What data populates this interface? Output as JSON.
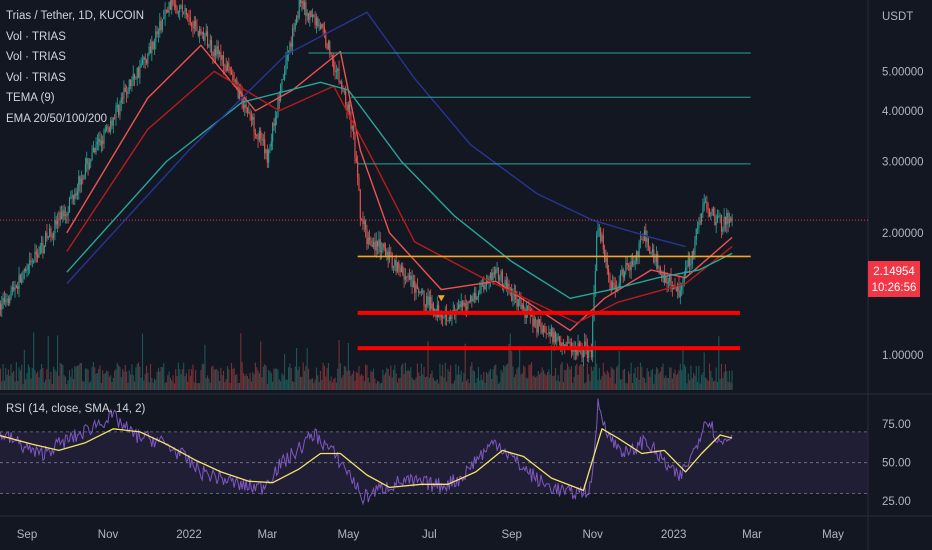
{
  "chart_data": {
    "type": "candlestick",
    "symbol_title": "Trias / Tether, 1D, KUCOIN",
    "indicators": [
      "Vol · TRIAS",
      "Vol · TRIAS",
      "Vol · TRIAS",
      "TEMA (9)",
      "EMA 20/50/100/200"
    ],
    "currency": "USDT",
    "y_scale": "log",
    "y_ticks": [
      "5.00000",
      "4.00000",
      "3.00000",
      "2.00000",
      "1.00000"
    ],
    "y_tick_values": [
      5,
      4,
      3,
      2,
      1
    ],
    "price_ylim": [
      0.82,
      7.5
    ],
    "last_price": "2.14954",
    "last_price_value": 2.15,
    "countdown": "10:26:56",
    "x_ticks": [
      "Sep",
      "Nov",
      "2022",
      "Mar",
      "May",
      "Jul",
      "Sep",
      "Nov",
      "2023",
      "Mar",
      "May"
    ],
    "x_tick_dates": [
      "2021-09-01",
      "2021-11-01",
      "2022-01-01",
      "2022-03-01",
      "2022-05-01",
      "2022-07-01",
      "2022-09-01",
      "2022-11-01",
      "2023-01-01",
      "2023-03-01",
      "2023-05-01"
    ],
    "price_path": [
      [
        "2021-08-10",
        1.3
      ],
      [
        "2021-09-01",
        1.6
      ],
      [
        "2021-10-01",
        2.3
      ],
      [
        "2021-11-01",
        3.6
      ],
      [
        "2021-12-01",
        5.5
      ],
      [
        "2021-12-20",
        7.5
      ],
      [
        "2022-01-05",
        6.5
      ],
      [
        "2022-01-25",
        5.4
      ],
      [
        "2022-02-08",
        4.4
      ],
      [
        "2022-02-22",
        3.5
      ],
      [
        "2022-03-01",
        3.05
      ],
      [
        "2022-03-12",
        4.6
      ],
      [
        "2022-03-25",
        7.3
      ],
      [
        "2022-04-10",
        6.5
      ],
      [
        "2022-04-22",
        5.0
      ],
      [
        "2022-05-01",
        4.0
      ],
      [
        "2022-05-05",
        3.4
      ],
      [
        "2022-05-10",
        2.2
      ],
      [
        "2022-05-15",
        1.95
      ],
      [
        "2022-06-01",
        1.75
      ],
      [
        "2022-06-20",
        1.45
      ],
      [
        "2022-07-05",
        1.3
      ],
      [
        "2022-07-20",
        1.25
      ],
      [
        "2022-08-05",
        1.42
      ],
      [
        "2022-08-20",
        1.62
      ],
      [
        "2022-09-05",
        1.35
      ],
      [
        "2022-09-25",
        1.15
      ],
      [
        "2022-10-15",
        1.05
      ],
      [
        "2022-10-31",
        1.02
      ],
      [
        "2022-11-05",
        2.1
      ],
      [
        "2022-11-15",
        1.45
      ],
      [
        "2022-12-01",
        1.7
      ],
      [
        "2022-12-10",
        1.95
      ],
      [
        "2022-12-25",
        1.55
      ],
      [
        "2023-01-05",
        1.45
      ],
      [
        "2023-01-15",
        1.8
      ],
      [
        "2023-01-24",
        2.35
      ],
      [
        "2023-02-05",
        2.12
      ],
      [
        "2023-02-14",
        2.15
      ]
    ],
    "emas": [
      {
        "color": "#ef5350",
        "points": [
          [
            "2021-10-01",
            2.0
          ],
          [
            "2021-12-01",
            4.3
          ],
          [
            "2022-01-10",
            5.8
          ],
          [
            "2022-02-20",
            4.0
          ],
          [
            "2022-03-20",
            4.5
          ],
          [
            "2022-04-25",
            5.6
          ],
          [
            "2022-05-10",
            3.2
          ],
          [
            "2022-06-01",
            2.0
          ],
          [
            "2022-07-10",
            1.45
          ],
          [
            "2022-08-20",
            1.52
          ],
          [
            "2022-10-15",
            1.15
          ],
          [
            "2022-11-10",
            1.38
          ],
          [
            "2022-12-15",
            1.62
          ],
          [
            "2023-01-10",
            1.55
          ],
          [
            "2023-02-14",
            1.95
          ]
        ]
      },
      {
        "color": "#b71c1c",
        "points": [
          [
            "2021-10-01",
            1.8
          ],
          [
            "2021-12-01",
            3.6
          ],
          [
            "2022-01-20",
            5.0
          ],
          [
            "2022-03-10",
            4.0
          ],
          [
            "2022-04-20",
            4.6
          ],
          [
            "2022-05-20",
            3.0
          ],
          [
            "2022-06-20",
            1.9
          ],
          [
            "2022-08-10",
            1.55
          ],
          [
            "2022-10-20",
            1.2
          ],
          [
            "2022-11-20",
            1.35
          ],
          [
            "2023-01-10",
            1.5
          ],
          [
            "2023-02-14",
            1.85
          ]
        ]
      },
      {
        "color": "#26a69a",
        "points": [
          [
            "2021-10-01",
            1.6
          ],
          [
            "2021-12-15",
            3.0
          ],
          [
            "2022-02-10",
            4.2
          ],
          [
            "2022-04-10",
            4.7
          ],
          [
            "2022-05-01",
            4.5
          ],
          [
            "2022-06-10",
            3.0
          ],
          [
            "2022-07-20",
            2.2
          ],
          [
            "2022-09-01",
            1.7
          ],
          [
            "2022-10-15",
            1.38
          ],
          [
            "2022-11-15",
            1.45
          ],
          [
            "2022-12-20",
            1.55
          ],
          [
            "2023-01-20",
            1.62
          ],
          [
            "2023-02-14",
            1.78
          ]
        ]
      },
      {
        "color": "#283593",
        "points": [
          [
            "2021-10-01",
            1.5
          ],
          [
            "2022-01-01",
            3.2
          ],
          [
            "2022-03-15",
            5.5
          ],
          [
            "2022-05-15",
            7.0
          ],
          [
            "2022-06-20",
            4.8
          ],
          [
            "2022-08-01",
            3.3
          ],
          [
            "2022-09-20",
            2.5
          ],
          [
            "2022-11-01",
            2.15
          ],
          [
            "2022-12-15",
            1.95
          ],
          [
            "2023-01-10",
            1.85
          ]
        ]
      }
    ],
    "resistance_lines": [
      {
        "price": 5.55,
        "start": "2022-04-01",
        "end": "2023-02-28",
        "color": "#26a69a"
      },
      {
        "price": 4.32,
        "start": "2022-05-03",
        "end": "2023-02-28",
        "color": "#26a69a"
      },
      {
        "price": 2.96,
        "start": "2022-05-08",
        "end": "2023-02-28",
        "color": "#26a69a"
      }
    ],
    "support_lines": [
      {
        "price": 1.75,
        "start": "2022-05-08",
        "end": "2023-02-28",
        "color": "#f5a623",
        "width": "thin"
      },
      {
        "price": 1.27,
        "start": "2022-05-08",
        "end": "2023-02-20",
        "color": "#ff0000",
        "width": "thick"
      },
      {
        "price": 1.04,
        "start": "2022-05-08",
        "end": "2023-02-20",
        "color": "#ff0000",
        "width": "thick"
      }
    ],
    "marker": {
      "date": "2022-07-10",
      "price": 1.38,
      "shape": "triangle-down",
      "color": "#f5a623"
    },
    "rsi": {
      "label": "RSI (14, close, SMA, 14, 2)",
      "y_ticks": [
        "75.00",
        "50.00",
        "25.00"
      ],
      "y_tick_values": [
        75,
        50,
        25
      ],
      "band": [
        30,
        70
      ],
      "ylim": [
        18,
        92
      ],
      "rsi_path": [
        [
          "2021-08-10",
          70
        ],
        [
          "2021-08-25",
          63
        ],
        [
          "2021-09-10",
          55
        ],
        [
          "2021-09-25",
          62
        ],
        [
          "2021-10-10",
          68
        ],
        [
          "2021-10-25",
          76
        ],
        [
          "2021-11-05",
          80
        ],
        [
          "2021-11-20",
          68
        ],
        [
          "2021-12-10",
          64
        ],
        [
          "2021-12-25",
          56
        ],
        [
          "2022-01-10",
          44
        ],
        [
          "2022-01-25",
          40
        ],
        [
          "2022-02-10",
          35
        ],
        [
          "2022-02-25",
          34
        ],
        [
          "2022-03-10",
          48
        ],
        [
          "2022-03-25",
          59
        ],
        [
          "2022-04-05",
          69
        ],
        [
          "2022-04-20",
          56
        ],
        [
          "2022-05-01",
          44
        ],
        [
          "2022-05-12",
          27
        ],
        [
          "2022-05-25",
          33
        ],
        [
          "2022-06-10",
          38
        ],
        [
          "2022-06-25",
          37
        ],
        [
          "2022-07-10",
          35
        ],
        [
          "2022-07-25",
          40
        ],
        [
          "2022-08-05",
          52
        ],
        [
          "2022-08-20",
          64
        ],
        [
          "2022-09-05",
          50
        ],
        [
          "2022-09-25",
          36
        ],
        [
          "2022-10-15",
          30
        ],
        [
          "2022-10-31",
          33
        ],
        [
          "2022-11-05",
          88
        ],
        [
          "2022-11-15",
          64
        ],
        [
          "2022-11-28",
          55
        ],
        [
          "2022-12-10",
          65
        ],
        [
          "2022-12-25",
          50
        ],
        [
          "2023-01-05",
          40
        ],
        [
          "2023-01-15",
          55
        ],
        [
          "2023-01-26",
          80
        ],
        [
          "2023-02-05",
          62
        ],
        [
          "2023-02-14",
          68
        ]
      ],
      "ma_path": [
        [
          "2021-08-10",
          68
        ],
        [
          "2021-09-05",
          62
        ],
        [
          "2021-09-25",
          58
        ],
        [
          "2021-10-15",
          63
        ],
        [
          "2021-11-05",
          72
        ],
        [
          "2021-11-25",
          70
        ],
        [
          "2021-12-15",
          62
        ],
        [
          "2022-01-05",
          52
        ],
        [
          "2022-01-25",
          44
        ],
        [
          "2022-02-15",
          38
        ],
        [
          "2022-03-05",
          37
        ],
        [
          "2022-03-25",
          46
        ],
        [
          "2022-04-10",
          56
        ],
        [
          "2022-04-25",
          56
        ],
        [
          "2022-05-15",
          42
        ],
        [
          "2022-06-01",
          34
        ],
        [
          "2022-06-25",
          36
        ],
        [
          "2022-07-15",
          36
        ],
        [
          "2022-08-05",
          44
        ],
        [
          "2022-08-25",
          58
        ],
        [
          "2022-09-10",
          54
        ],
        [
          "2022-10-01",
          40
        ],
        [
          "2022-10-25",
          32
        ],
        [
          "2022-11-08",
          72
        ],
        [
          "2022-11-20",
          66
        ],
        [
          "2022-12-08",
          56
        ],
        [
          "2022-12-25",
          58
        ],
        [
          "2023-01-10",
          44
        ],
        [
          "2023-01-22",
          56
        ],
        [
          "2023-02-05",
          68
        ],
        [
          "2023-02-14",
          66
        ]
      ]
    }
  },
  "colors": {
    "background": "#131722",
    "up": "#26a69a",
    "down": "#ef5350",
    "rsi_line": "#7e57c2",
    "rsi_ma": "#f5e36b",
    "rsi_band": "#2a2545",
    "text": "#d1d4dc",
    "axis_text": "#b2b5be"
  }
}
